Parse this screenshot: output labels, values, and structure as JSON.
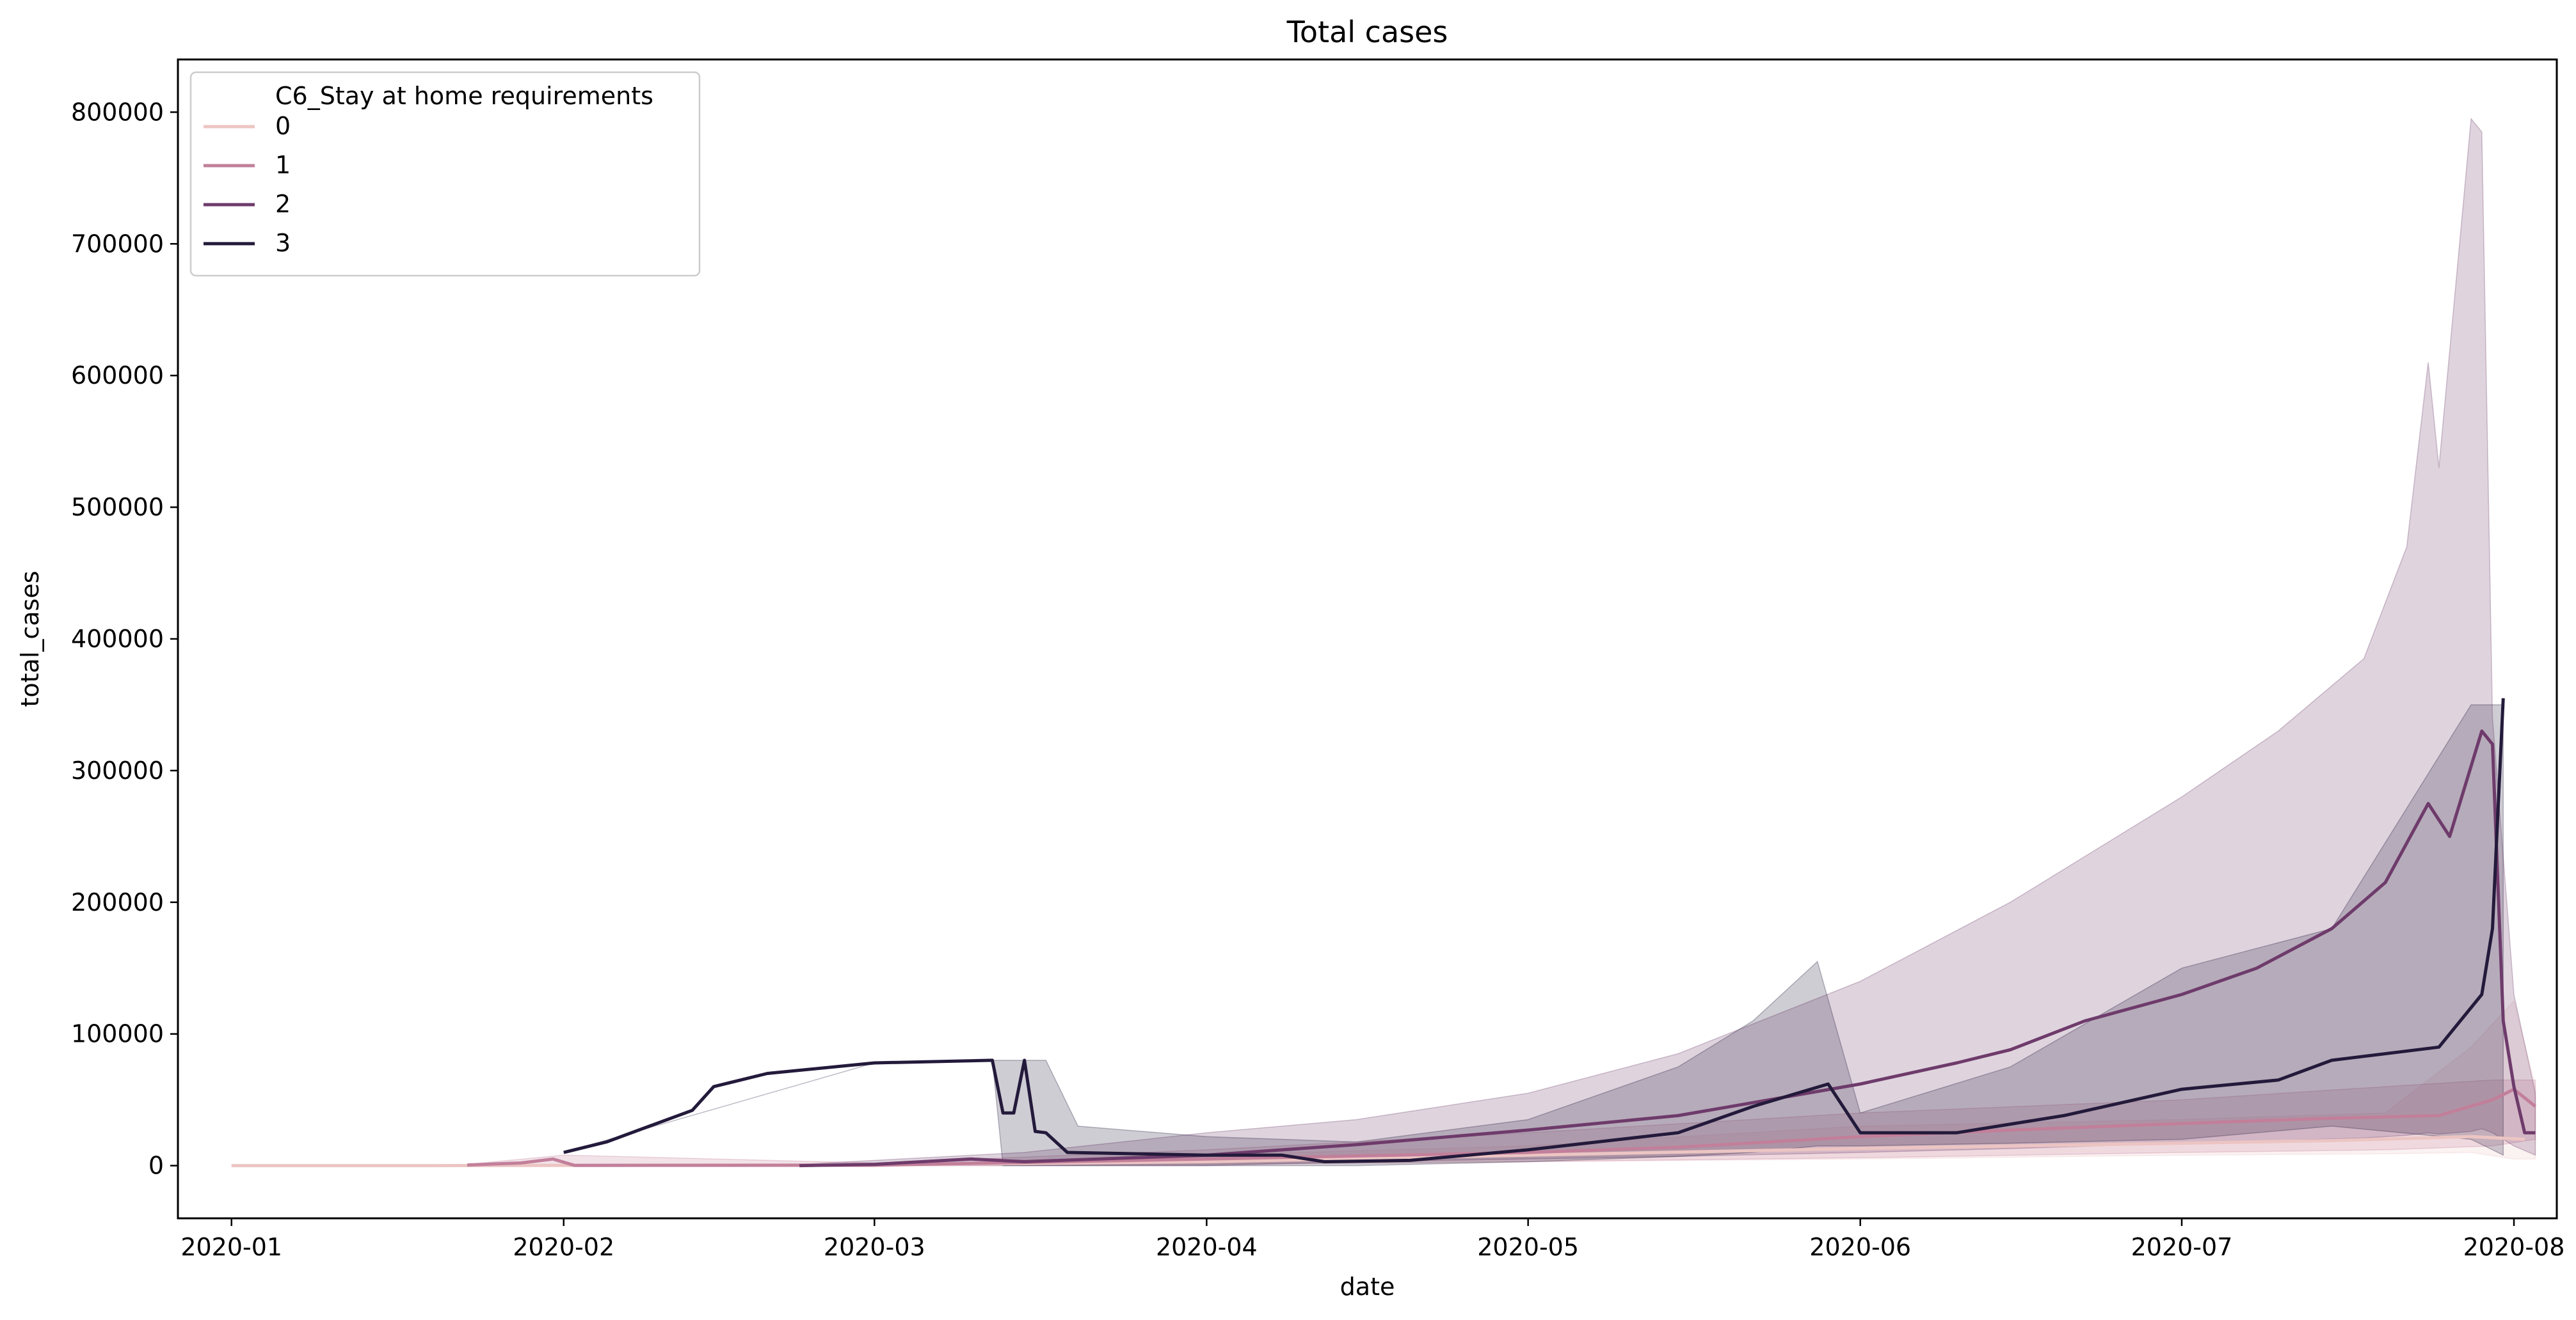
{
  "chart_data": {
    "type": "line",
    "title": "Total cases",
    "xlabel": "date",
    "ylabel": "total_cases",
    "xlim": [
      "2019-12-27",
      "2020-08-05"
    ],
    "ylim": [
      -40000,
      840000
    ],
    "x_ticks": [
      "2020-01",
      "2020-02",
      "2020-03",
      "2020-04",
      "2020-05",
      "2020-06",
      "2020-07",
      "2020-08"
    ],
    "y_ticks": [
      "0",
      "100000",
      "200000",
      "300000",
      "400000",
      "500000",
      "600000",
      "700000",
      "800000"
    ],
    "grid": false,
    "legend": {
      "title": "C6_Stay at home requirements",
      "placement": "top-left"
    },
    "series": [
      {
        "name": "0",
        "color": "#ecc5c3",
        "points": [
          [
            "2020-01-01",
            0
          ],
          [
            "2020-01-20",
            0
          ],
          [
            "2020-02-01",
            200
          ],
          [
            "2020-03-01",
            500
          ],
          [
            "2020-04-01",
            3000
          ],
          [
            "2020-05-01",
            8000
          ],
          [
            "2020-06-01",
            13000
          ],
          [
            "2020-07-01",
            17000
          ],
          [
            "2020-07-15",
            19000
          ],
          [
            "2020-07-28",
            22000
          ],
          [
            "2020-08-02",
            20000
          ]
        ],
        "band": [
          [
            "2020-01-01",
            0,
            0
          ],
          [
            "2020-02-01",
            0,
            500
          ],
          [
            "2020-03-01",
            0,
            1000
          ],
          [
            "2020-04-01",
            1000,
            8000
          ],
          [
            "2020-05-01",
            3000,
            15000
          ],
          [
            "2020-06-01",
            5000,
            30000
          ],
          [
            "2020-07-01",
            8000,
            35000
          ],
          [
            "2020-07-20",
            9000,
            40000
          ],
          [
            "2020-07-28",
            10000,
            90000
          ],
          [
            "2020-08-01",
            5000,
            125000
          ],
          [
            "2020-08-03",
            5000,
            60000
          ]
        ]
      },
      {
        "name": "1",
        "color": "#c27f9a",
        "points": [
          [
            "2020-01-23",
            500
          ],
          [
            "2020-01-28",
            2000
          ],
          [
            "2020-01-31",
            5000
          ],
          [
            "2020-02-02",
            200
          ],
          [
            "2020-03-01",
            300
          ],
          [
            "2020-04-01",
            5000
          ],
          [
            "2020-05-01",
            10000
          ],
          [
            "2020-05-15",
            14000
          ],
          [
            "2020-06-01",
            22000
          ],
          [
            "2020-06-15",
            27000
          ],
          [
            "2020-07-01",
            32000
          ],
          [
            "2020-07-15",
            36000
          ],
          [
            "2020-07-25",
            38000
          ],
          [
            "2020-07-30",
            50000
          ],
          [
            "2020-08-01",
            58000
          ],
          [
            "2020-08-03",
            45000
          ]
        ],
        "band": [
          [
            "2020-01-23",
            0,
            1000
          ],
          [
            "2020-02-01",
            0,
            8000
          ],
          [
            "2020-03-01",
            0,
            2000
          ],
          [
            "2020-04-01",
            1000,
            12000
          ],
          [
            "2020-05-01",
            3000,
            25000
          ],
          [
            "2020-06-01",
            6000,
            40000
          ],
          [
            "2020-07-01",
            10000,
            50000
          ],
          [
            "2020-07-20",
            12000,
            60000
          ],
          [
            "2020-07-30",
            15000,
            65000
          ],
          [
            "2020-08-03",
            20000,
            65000
          ]
        ]
      },
      {
        "name": "2",
        "color": "#6e3b6b",
        "points": [
          [
            "2020-02-23",
            0
          ],
          [
            "2020-03-01",
            1000
          ],
          [
            "2020-03-10",
            5000
          ],
          [
            "2020-03-15",
            3000
          ],
          [
            "2020-04-01",
            8000
          ],
          [
            "2020-04-15",
            16000
          ],
          [
            "2020-05-01",
            27000
          ],
          [
            "2020-05-15",
            38000
          ],
          [
            "2020-06-01",
            62000
          ],
          [
            "2020-06-10",
            78000
          ],
          [
            "2020-06-15",
            88000
          ],
          [
            "2020-06-22",
            110000
          ],
          [
            "2020-07-01",
            130000
          ],
          [
            "2020-07-08",
            150000
          ],
          [
            "2020-07-15",
            180000
          ],
          [
            "2020-07-20",
            215000
          ],
          [
            "2020-07-24",
            275000
          ],
          [
            "2020-07-26",
            250000
          ],
          [
            "2020-07-29",
            330000
          ],
          [
            "2020-07-30",
            320000
          ],
          [
            "2020-07-31",
            110000
          ],
          [
            "2020-08-01",
            60000
          ],
          [
            "2020-08-02",
            25000
          ],
          [
            "2020-08-03",
            25000
          ]
        ],
        "band": [
          [
            "2020-02-23",
            0,
            1000
          ],
          [
            "2020-03-15",
            0,
            10000
          ],
          [
            "2020-04-01",
            0,
            25000
          ],
          [
            "2020-04-15",
            3000,
            35000
          ],
          [
            "2020-05-01",
            5000,
            55000
          ],
          [
            "2020-05-15",
            7000,
            85000
          ],
          [
            "2020-06-01",
            10000,
            140000
          ],
          [
            "2020-06-15",
            13000,
            200000
          ],
          [
            "2020-07-01",
            17000,
            280000
          ],
          [
            "2020-07-10",
            19000,
            330000
          ],
          [
            "2020-07-18",
            21000,
            385000
          ],
          [
            "2020-07-22",
            23000,
            470000
          ],
          [
            "2020-07-24",
            25000,
            610000
          ],
          [
            "2020-07-25",
            24000,
            530000
          ],
          [
            "2020-07-28",
            26000,
            795000
          ],
          [
            "2020-07-29",
            28000,
            785000
          ],
          [
            "2020-07-30",
            25000,
            340000
          ],
          [
            "2020-08-01",
            15000,
            130000
          ],
          [
            "2020-08-03",
            8000,
            55000
          ]
        ]
      },
      {
        "name": "3",
        "color": "#231a3b",
        "points": [
          [
            "2020-02-01",
            10000
          ],
          [
            "2020-02-05",
            18000
          ],
          [
            "2020-02-09",
            30000
          ],
          [
            "2020-02-13",
            42000
          ],
          [
            "2020-02-15",
            60000
          ],
          [
            "2020-02-20",
            70000
          ],
          [
            "2020-03-01",
            78000
          ],
          [
            "2020-03-12",
            80000
          ],
          [
            "2020-03-13",
            40000
          ],
          [
            "2020-03-14",
            40000
          ],
          [
            "2020-03-15",
            80000
          ],
          [
            "2020-03-16",
            26000
          ],
          [
            "2020-03-17",
            25000
          ],
          [
            "2020-03-19",
            10000
          ],
          [
            "2020-04-01",
            8000
          ],
          [
            "2020-04-08",
            8000
          ],
          [
            "2020-04-12",
            3000
          ],
          [
            "2020-04-20",
            4000
          ],
          [
            "2020-05-01",
            12000
          ],
          [
            "2020-05-15",
            25000
          ],
          [
            "2020-05-22",
            45000
          ],
          [
            "2020-05-29",
            62000
          ],
          [
            "2020-06-01",
            25000
          ],
          [
            "2020-06-10",
            25000
          ],
          [
            "2020-06-20",
            38000
          ],
          [
            "2020-07-01",
            58000
          ],
          [
            "2020-07-10",
            65000
          ],
          [
            "2020-07-15",
            80000
          ],
          [
            "2020-07-25",
            90000
          ],
          [
            "2020-07-29",
            130000
          ],
          [
            "2020-07-30",
            180000
          ],
          [
            "2020-07-31",
            355000
          ]
        ],
        "band": [
          [
            "2020-02-01",
            10000,
            10000
          ],
          [
            "2020-03-01",
            78000,
            78000
          ],
          [
            "2020-03-12",
            80000,
            80000
          ],
          [
            "2020-03-13",
            0,
            80000
          ],
          [
            "2020-03-14",
            0,
            80000
          ],
          [
            "2020-03-16",
            0,
            80000
          ],
          [
            "2020-03-17",
            0,
            80000
          ],
          [
            "2020-03-20",
            0,
            30000
          ],
          [
            "2020-04-01",
            0,
            22000
          ],
          [
            "2020-04-15",
            0,
            18000
          ],
          [
            "2020-05-01",
            3000,
            35000
          ],
          [
            "2020-05-15",
            7000,
            75000
          ],
          [
            "2020-05-22",
            10000,
            110000
          ],
          [
            "2020-05-28",
            15000,
            155000
          ],
          [
            "2020-06-01",
            15000,
            40000
          ],
          [
            "2020-06-15",
            17000,
            75000
          ],
          [
            "2020-07-01",
            20000,
            150000
          ],
          [
            "2020-07-15",
            30000,
            180000
          ],
          [
            "2020-07-28",
            20000,
            350000
          ],
          [
            "2020-07-31",
            8000,
            350000
          ]
        ]
      }
    ]
  }
}
